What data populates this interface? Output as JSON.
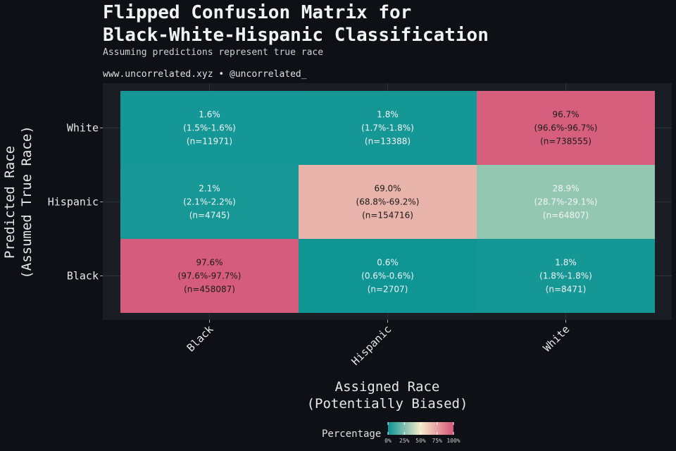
{
  "chart_data": {
    "type": "heatmap",
    "title": "Flipped Confusion Matrix for Black-White-Hispanic Classification",
    "title_lines": [
      "Flipped Confusion Matrix for",
      "Black-White-Hispanic Classification"
    ],
    "subtitle": "Assuming predictions represent true race",
    "caption": "www.uncorrelated.xyz • @uncorrelated_",
    "xlabel_lines": [
      "Assigned Race",
      "(Potentially Biased)"
    ],
    "ylabel_lines": [
      "Predicted Race",
      "(Assumed True Race)"
    ],
    "x_categories": [
      "Black",
      "Hispanic",
      "White"
    ],
    "y_categories": [
      "White",
      "Hispanic",
      "Black"
    ],
    "legend": {
      "title": "Percentage",
      "ticks": [
        "0%",
        "25%",
        "50%",
        "75%",
        "100%"
      ],
      "tick_values": [
        0,
        25,
        50,
        75,
        100
      ],
      "colors": [
        "#0d9494",
        "#f5ecc8",
        "#d45579"
      ]
    },
    "cells": [
      {
        "x": "Black",
        "y": "White",
        "value": 1.6,
        "pct": "1.6%",
        "ci": "(1.5%-1.6%)",
        "n": "(n=11971)"
      },
      {
        "x": "Hispanic",
        "y": "White",
        "value": 1.8,
        "pct": "1.8%",
        "ci": "(1.7%-1.8%)",
        "n": "(n=13388)"
      },
      {
        "x": "White",
        "y": "White",
        "value": 96.7,
        "pct": "96.7%",
        "ci": "(96.6%-96.7%)",
        "n": "(n=738555)"
      },
      {
        "x": "Black",
        "y": "Hispanic",
        "value": 2.1,
        "pct": "2.1%",
        "ci": "(2.1%-2.2%)",
        "n": "(n=4745)"
      },
      {
        "x": "Hispanic",
        "y": "Hispanic",
        "value": 69.0,
        "pct": "69.0%",
        "ci": "(68.8%-69.2%)",
        "n": "(n=154716)"
      },
      {
        "x": "White",
        "y": "Hispanic",
        "value": 28.9,
        "pct": "28.9%",
        "ci": "(28.7%-29.1%)",
        "n": "(n=64807)"
      },
      {
        "x": "Black",
        "y": "Black",
        "value": 97.6,
        "pct": "97.6%",
        "ci": "(97.6%-97.7%)",
        "n": "(n=458087)"
      },
      {
        "x": "Hispanic",
        "y": "Black",
        "value": 0.6,
        "pct": "0.6%",
        "ci": "(0.6%-0.6%)",
        "n": "(n=2707)"
      },
      {
        "x": "White",
        "y": "Black",
        "value": 1.8,
        "pct": "1.8%",
        "ci": "(1.8%-1.8%)",
        "n": "(n=8471)"
      }
    ]
  }
}
